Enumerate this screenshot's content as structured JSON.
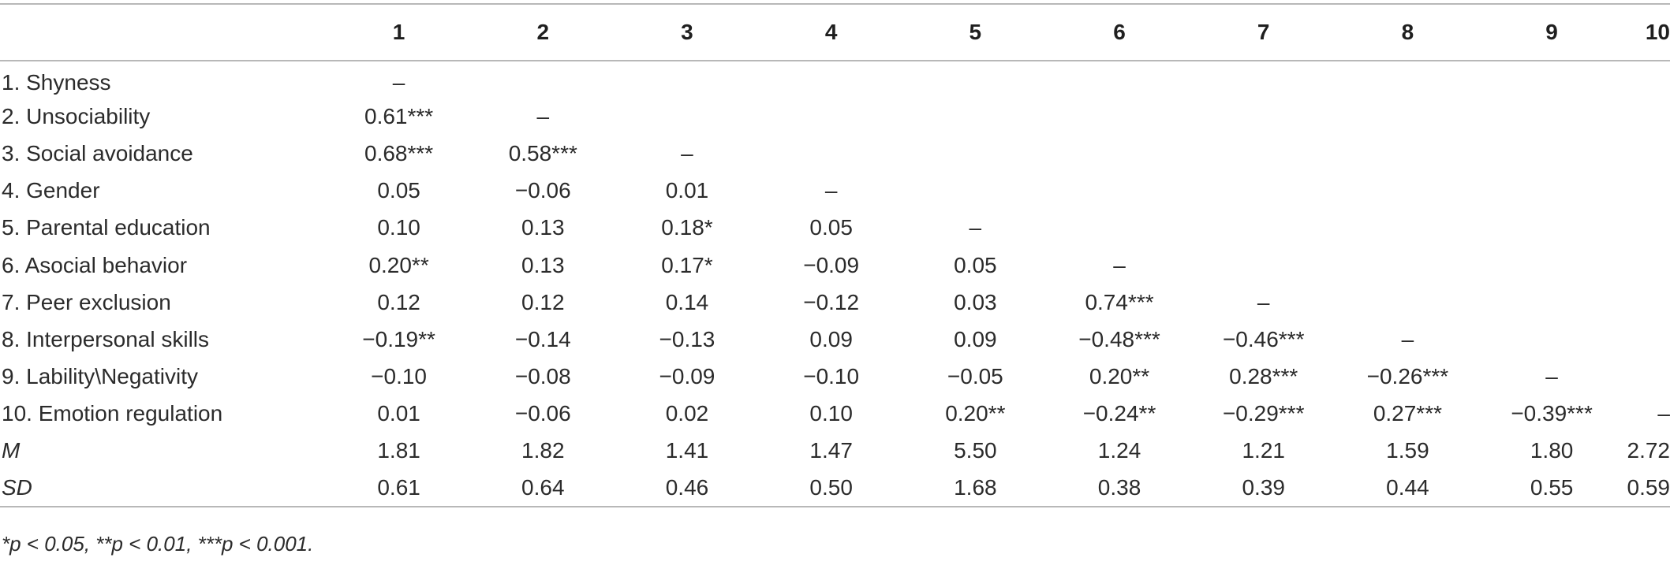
{
  "table": {
    "headers": [
      "",
      "1",
      "2",
      "3",
      "4",
      "5",
      "6",
      "7",
      "8",
      "9",
      "10"
    ],
    "rows": [
      {
        "label": "1. Shyness",
        "italic": false,
        "cells": [
          "–",
          "",
          "",
          "",
          "",
          "",
          "",
          "",
          "",
          ""
        ]
      },
      {
        "label": "2. Unsociability",
        "italic": false,
        "cells": [
          "0.61***",
          "–",
          "",
          "",
          "",
          "",
          "",
          "",
          "",
          ""
        ]
      },
      {
        "label": "3. Social avoidance",
        "italic": false,
        "cells": [
          "0.68***",
          "0.58***",
          "–",
          "",
          "",
          "",
          "",
          "",
          "",
          ""
        ]
      },
      {
        "label": "4. Gender",
        "italic": false,
        "cells": [
          "0.05",
          "−0.06",
          "0.01",
          "–",
          "",
          "",
          "",
          "",
          "",
          ""
        ]
      },
      {
        "label": "5. Parental education",
        "italic": false,
        "cells": [
          "0.10",
          "0.13",
          "0.18*",
          "0.05",
          "–",
          "",
          "",
          "",
          "",
          ""
        ]
      },
      {
        "label": "6. Asocial behavior",
        "italic": false,
        "cells": [
          "0.20**",
          "0.13",
          "0.17*",
          "−0.09",
          "0.05",
          "–",
          "",
          "",
          "",
          ""
        ]
      },
      {
        "label": "7. Peer exclusion",
        "italic": false,
        "cells": [
          "0.12",
          "0.12",
          "0.14",
          "−0.12",
          "0.03",
          "0.74***",
          "–",
          "",
          "",
          ""
        ]
      },
      {
        "label": "8. Interpersonal skills",
        "italic": false,
        "cells": [
          "−0.19**",
          "−0.14",
          "−0.13",
          "0.09",
          "0.09",
          "−0.48***",
          "−0.46***",
          "–",
          "",
          ""
        ]
      },
      {
        "label": "9. Lability\\Negativity",
        "italic": false,
        "cells": [
          "−0.10",
          "−0.08",
          "−0.09",
          "−0.10",
          "−0.05",
          "0.20**",
          "0.28***",
          "−0.26***",
          "–",
          ""
        ]
      },
      {
        "label": "10. Emotion regulation",
        "italic": false,
        "cells": [
          "0.01",
          "−0.06",
          "0.02",
          "0.10",
          "0.20**",
          "−0.24**",
          "−0.29***",
          "0.27***",
          "−0.39***",
          "–"
        ]
      },
      {
        "label": "M",
        "italic": true,
        "cells": [
          "1.81",
          "1.82",
          "1.41",
          "1.47",
          "5.50",
          "1.24",
          "1.21",
          "1.59",
          "1.80",
          "2.72"
        ]
      },
      {
        "label": "SD",
        "italic": true,
        "cells": [
          "0.61",
          "0.64",
          "0.46",
          "0.50",
          "1.68",
          "0.38",
          "0.39",
          "0.44",
          "0.55",
          "0.59"
        ]
      }
    ]
  },
  "note": "*p < 0.05, **p < 0.01, ***p < 0.001."
}
